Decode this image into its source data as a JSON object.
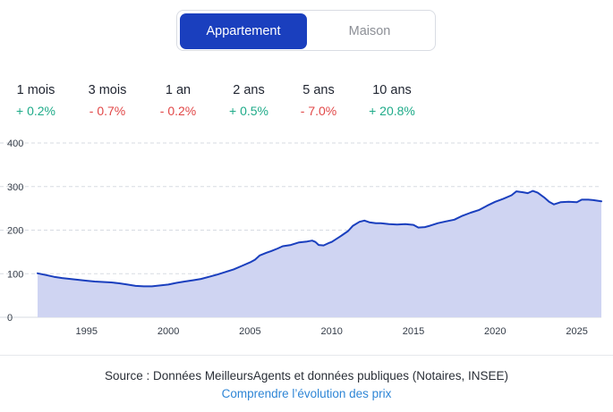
{
  "toggle": {
    "active": "Appartement",
    "inactive": "Maison"
  },
  "stats": [
    {
      "period": "1 mois",
      "change": "+ 0.2%",
      "sign": "pos"
    },
    {
      "period": "3 mois",
      "change": "- 0.7%",
      "sign": "neg"
    },
    {
      "period": "1 an",
      "change": "- 0.2%",
      "sign": "neg"
    },
    {
      "period": "2 ans",
      "change": "+ 0.5%",
      "sign": "pos"
    },
    {
      "period": "5 ans",
      "change": "- 7.0%",
      "sign": "neg"
    },
    {
      "period": "10 ans",
      "change": "+ 20.8%",
      "sign": "pos"
    }
  ],
  "chart_data": {
    "type": "area",
    "title": "",
    "xlabel": "",
    "ylabel": "",
    "xlim": [
      1992,
      2026.5
    ],
    "ylim": [
      0,
      400
    ],
    "x_ticks": [
      1995,
      2000,
      2005,
      2010,
      2015,
      2020,
      2025
    ],
    "y_ticks": [
      0,
      100,
      200,
      300,
      400
    ],
    "grid": true,
    "colors": {
      "line": "#1a3fbe",
      "fill": "#cfd4f2",
      "grid": "#d7dbe2"
    },
    "series": [
      {
        "points": [
          [
            1992.0,
            101
          ],
          [
            1992.5,
            97
          ],
          [
            1993.0,
            93
          ],
          [
            1993.5,
            90
          ],
          [
            1994.0,
            88
          ],
          [
            1994.5,
            86
          ],
          [
            1995.0,
            84
          ],
          [
            1995.5,
            82
          ],
          [
            1996.0,
            81
          ],
          [
            1996.5,
            80
          ],
          [
            1997.0,
            78
          ],
          [
            1997.5,
            75
          ],
          [
            1998.0,
            72
          ],
          [
            1998.5,
            71
          ],
          [
            1999.0,
            71
          ],
          [
            1999.5,
            73
          ],
          [
            2000.0,
            75
          ],
          [
            2000.5,
            79
          ],
          [
            2001.0,
            82
          ],
          [
            2001.5,
            85
          ],
          [
            2002.0,
            88
          ],
          [
            2002.5,
            93
          ],
          [
            2003.0,
            98
          ],
          [
            2003.5,
            104
          ],
          [
            2004.0,
            110
          ],
          [
            2004.5,
            118
          ],
          [
            2005.0,
            126
          ],
          [
            2005.3,
            132
          ],
          [
            2005.6,
            142
          ],
          [
            2006.0,
            148
          ],
          [
            2006.3,
            152
          ],
          [
            2006.7,
            158
          ],
          [
            2007.0,
            163
          ],
          [
            2007.5,
            166
          ],
          [
            2008.0,
            172
          ],
          [
            2008.5,
            174
          ],
          [
            2008.8,
            176
          ],
          [
            2009.0,
            173
          ],
          [
            2009.2,
            166
          ],
          [
            2009.5,
            165
          ],
          [
            2009.8,
            170
          ],
          [
            2010.0,
            173
          ],
          [
            2010.5,
            185
          ],
          [
            2011.0,
            198
          ],
          [
            2011.3,
            210
          ],
          [
            2011.7,
            219
          ],
          [
            2012.0,
            222
          ],
          [
            2012.3,
            218
          ],
          [
            2012.7,
            216
          ],
          [
            2013.0,
            216
          ],
          [
            2013.5,
            214
          ],
          [
            2014.0,
            213
          ],
          [
            2014.5,
            214
          ],
          [
            2015.0,
            212
          ],
          [
            2015.3,
            206
          ],
          [
            2015.7,
            207
          ],
          [
            2016.0,
            210
          ],
          [
            2016.5,
            216
          ],
          [
            2017.0,
            220
          ],
          [
            2017.5,
            224
          ],
          [
            2018.0,
            233
          ],
          [
            2018.5,
            240
          ],
          [
            2019.0,
            246
          ],
          [
            2019.5,
            256
          ],
          [
            2020.0,
            265
          ],
          [
            2020.5,
            272
          ],
          [
            2021.0,
            280
          ],
          [
            2021.3,
            289
          ],
          [
            2021.7,
            287
          ],
          [
            2022.0,
            285
          ],
          [
            2022.3,
            290
          ],
          [
            2022.6,
            286
          ],
          [
            2023.0,
            275
          ],
          [
            2023.3,
            265
          ],
          [
            2023.6,
            259
          ],
          [
            2024.0,
            264
          ],
          [
            2024.5,
            265
          ],
          [
            2025.0,
            264
          ],
          [
            2025.3,
            270
          ],
          [
            2025.7,
            270
          ],
          [
            2026.0,
            269
          ],
          [
            2026.5,
            266
          ]
        ]
      }
    ]
  },
  "footer": {
    "source": "Source : Données MeilleursAgents et données publiques (Notaires, INSEE)",
    "link": "Comprendre l’évolution des prix"
  }
}
